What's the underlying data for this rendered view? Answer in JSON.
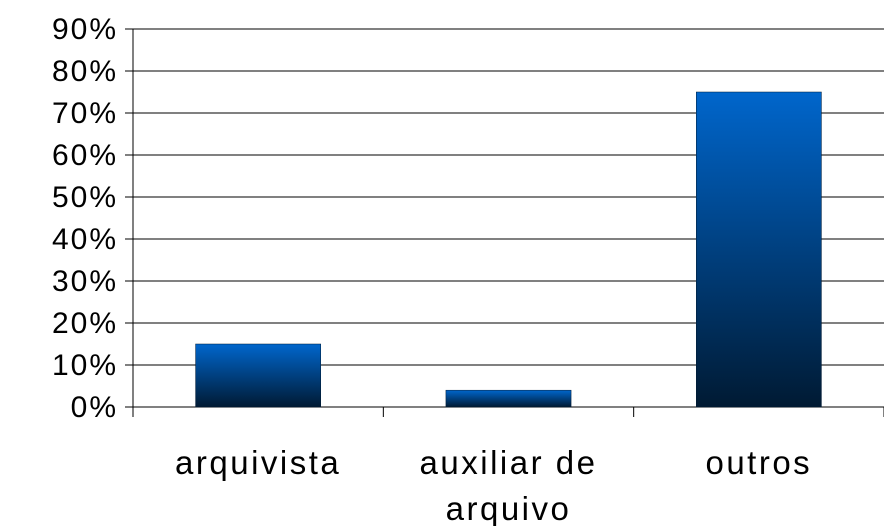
{
  "chart_data": {
    "type": "bar",
    "categories": [
      "arquivista",
      "auxiliar de arquivo",
      "outros"
    ],
    "values": [
      15,
      4,
      75
    ],
    "color": "#0066cc",
    "ylim": [
      0,
      90
    ],
    "yticks": [
      {
        "value": 0,
        "label": "0%"
      },
      {
        "value": 10,
        "label": "10%"
      },
      {
        "value": 20,
        "label": "20%"
      },
      {
        "value": 30,
        "label": "30%"
      },
      {
        "value": 40,
        "label": "40%"
      },
      {
        "value": 50,
        "label": "50%"
      },
      {
        "value": 60,
        "label": "60%"
      },
      {
        "value": 70,
        "label": "70%"
      },
      {
        "value": 80,
        "label": "80%"
      },
      {
        "value": 90,
        "label": "90%"
      }
    ],
    "grid": true
  }
}
